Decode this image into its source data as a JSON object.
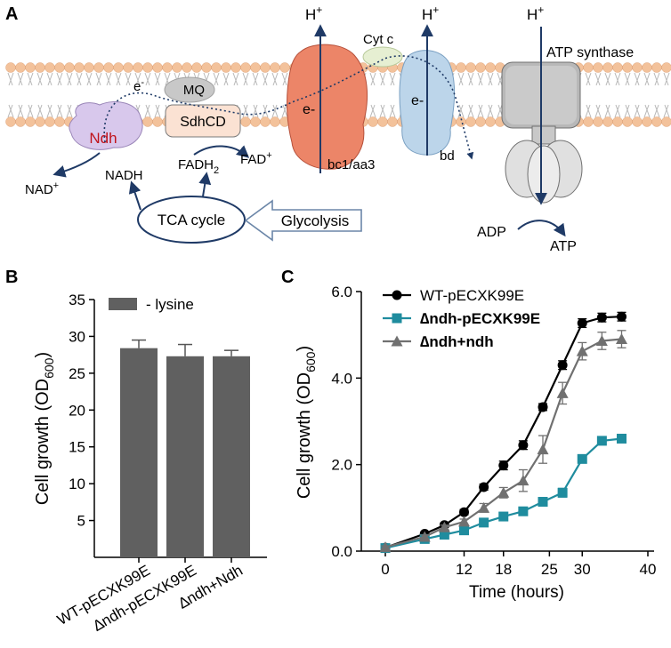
{
  "panel_a": {
    "label": "A",
    "h_plus": "H+",
    "cyt_c": "Cyt c",
    "atp_synthase": "ATP synthase",
    "electron": "e-",
    "mq": "MQ",
    "ndh": "Ndh",
    "sdhcd": "SdhCD",
    "bc1_aa3": "bc1/aa3",
    "bd": "bd",
    "nad_plus": "NAD+",
    "nadh": "NADH",
    "fadh2": "FADH2",
    "fad_plus": "FAD+",
    "tca_cycle": "TCA cycle",
    "glycolysis": "Glycolysis",
    "adp": "ADP",
    "atp": "ATP",
    "colors": {
      "membrane_head": "#f3c29b",
      "ndh_fill": "#d8c8ec",
      "ndh_text": "#c0141c",
      "sdhcd_fill": "#fbe2d3",
      "bc1_fill": "#ec8568",
      "bd_fill": "#bcd5ea",
      "cytc_fill": "#e6efd2",
      "arrow": "#1f3a66"
    }
  },
  "panel_b": {
    "label": "B",
    "colors": {
      "bar": "#606060"
    },
    "chart_data": {
      "type": "bar",
      "categories": [
        "WT-pECXK99E",
        "∆ndh-pECXK99E",
        "∆ndh+Ndh"
      ],
      "series": [
        {
          "name": "- lysine",
          "values": [
            28.4,
            27.3,
            27.3
          ],
          "errors": [
            1.1,
            1.6,
            0.8
          ]
        }
      ],
      "ylabel": "Cell growth (OD600)",
      "yticks": [
        5,
        10,
        15,
        20,
        25,
        30,
        35
      ],
      "ylim": [
        0,
        35
      ],
      "legend": "top-left"
    }
  },
  "panel_c": {
    "label": "C",
    "colors": {
      "wt": "#000000",
      "ndh": "#1f8c9e",
      "comp": "#707070"
    },
    "chart_data": {
      "type": "line",
      "xlabel": "Time (hours)",
      "ylabel": "Cell growth (OD600)",
      "xticks": [
        0,
        12,
        18,
        25,
        30,
        40
      ],
      "yticks": [
        "0.0",
        "2.0",
        "4.0",
        "6.0"
      ],
      "xlim": [
        0,
        40
      ],
      "ylim": [
        0,
        6
      ],
      "legend": "top-left",
      "series": [
        {
          "name": "WT-pECXK99E",
          "marker": "circle",
          "x": [
            0,
            6,
            9,
            12,
            15,
            18,
            21,
            24,
            27,
            30,
            33,
            36
          ],
          "y": [
            0.08,
            0.4,
            0.6,
            0.9,
            1.48,
            1.98,
            2.45,
            3.33,
            4.3,
            5.27,
            5.4,
            5.42
          ],
          "err": [
            0.03,
            0.04,
            0.05,
            0.06,
            0.07,
            0.1,
            0.1,
            0.08,
            0.1,
            0.1,
            0.1,
            0.1
          ]
        },
        {
          "name": "∆ndh-pECXK99E",
          "marker": "square",
          "x": [
            0,
            6,
            9,
            12,
            15,
            18,
            21,
            24,
            27,
            30,
            33,
            36
          ],
          "y": [
            0.07,
            0.28,
            0.38,
            0.48,
            0.66,
            0.8,
            0.92,
            1.14,
            1.35,
            2.13,
            2.55,
            2.6
          ],
          "err": [
            0.02,
            0.04,
            0.04,
            0.05,
            0.05,
            0.05,
            0.05,
            0.05,
            0.1,
            0.05,
            0.05,
            0.05
          ]
        },
        {
          "name": "∆ndh+ndh",
          "marker": "triangle",
          "x": [
            0,
            6,
            9,
            12,
            15,
            18,
            21,
            24,
            27,
            30,
            33,
            36
          ],
          "y": [
            0.09,
            0.33,
            0.55,
            0.68,
            1.0,
            1.35,
            1.63,
            2.35,
            3.65,
            4.62,
            4.86,
            4.9
          ],
          "err": [
            0.03,
            0.04,
            0.05,
            0.06,
            0.1,
            0.12,
            0.25,
            0.32,
            0.25,
            0.2,
            0.2,
            0.2
          ]
        }
      ]
    }
  }
}
